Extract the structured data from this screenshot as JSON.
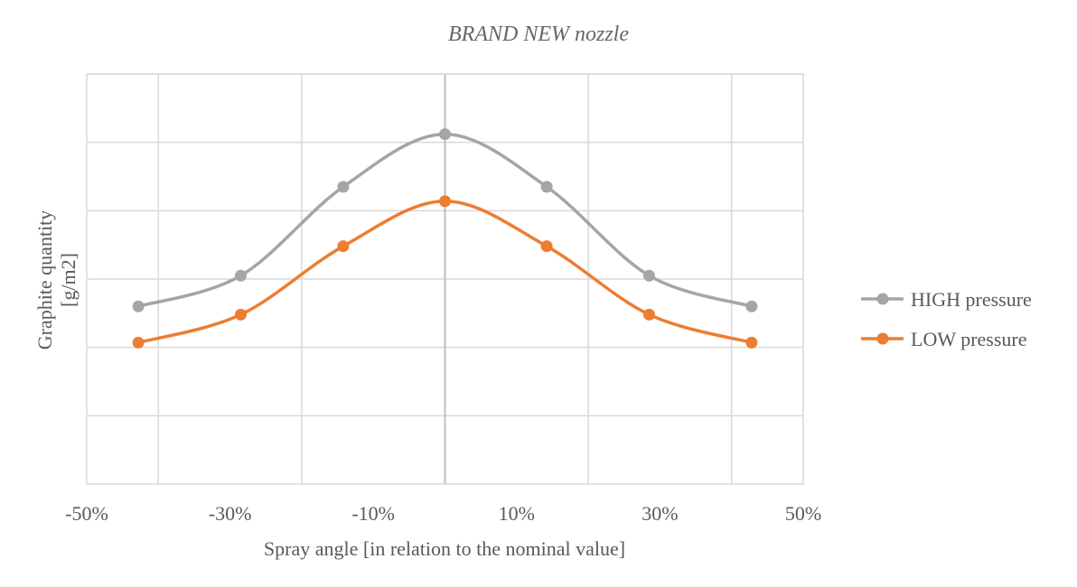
{
  "chart_data": {
    "type": "line",
    "title": "BRAND NEW nozzle",
    "xlabel": "Spray angle [in relation to the nominal value]",
    "ylabel": [
      "Graphite quantity",
      "[g/m2]"
    ],
    "xlim": [
      -50,
      50
    ],
    "ylim": [
      0,
      6
    ],
    "x_ticks": [
      -50,
      -30,
      -10,
      10,
      30,
      50
    ],
    "x_tick_labels": [
      "-50%",
      "-30%",
      "-10%",
      "10%",
      "30%",
      "50%"
    ],
    "y_gridlines": [
      1,
      2,
      3,
      4,
      5,
      6
    ],
    "x_gridlines": [
      -40,
      -20,
      0,
      20,
      40
    ],
    "y_tick_labels_shown": false,
    "grid": true,
    "smooth": true,
    "legend_position": "right",
    "series": [
      {
        "name": "HIGH pressure",
        "color": "#a5a5a5",
        "x": [
          -42.8,
          -28.5,
          -14.2,
          0,
          14.2,
          28.5,
          42.8
        ],
        "y": [
          2.6,
          3.05,
          4.35,
          5.12,
          4.35,
          3.05,
          2.6
        ]
      },
      {
        "name": "LOW pressure",
        "color": "#ed7d31",
        "x": [
          -42.8,
          -28.5,
          -14.2,
          0,
          14.2,
          28.5,
          42.8
        ],
        "y": [
          2.07,
          2.48,
          3.48,
          4.14,
          3.48,
          2.48,
          2.07
        ]
      }
    ]
  }
}
